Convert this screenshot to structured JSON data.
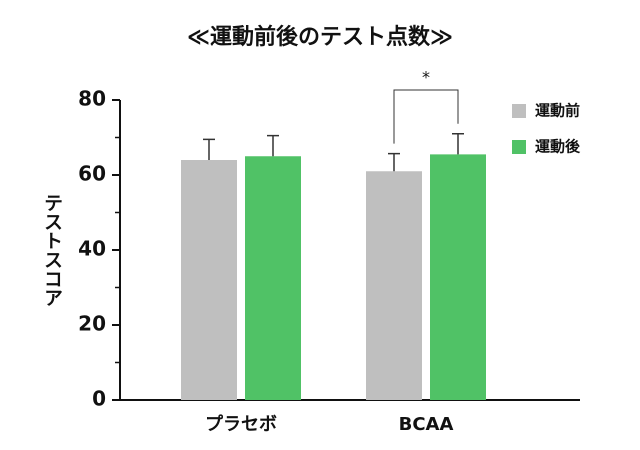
{
  "chart_data": {
    "type": "bar",
    "title": "≪運動前後のテスト点数≫",
    "y_label": "テストスコア",
    "categories": [
      "プラセボ",
      "BCAA"
    ],
    "series": [
      {
        "name": "運動前",
        "color": "#bfbfbf",
        "values": [
          64,
          61
        ],
        "errors": [
          5.5,
          4.7
        ]
      },
      {
        "name": "運動後",
        "color": "#50c266",
        "values": [
          65,
          65.5
        ],
        "errors": [
          5.5,
          5.5
        ]
      }
    ],
    "annotation": "*",
    "ylim": [
      0,
      80
    ],
    "yticks": [
      0,
      20,
      40,
      60,
      80
    ],
    "yminorticks": [
      10,
      30,
      50,
      70
    ],
    "legend": "upper right"
  }
}
